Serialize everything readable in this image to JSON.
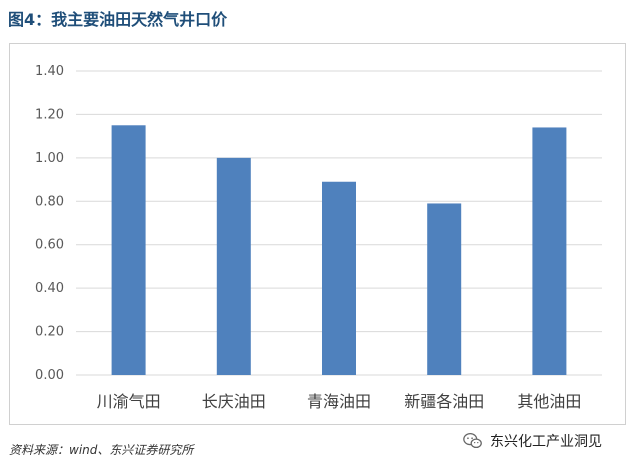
{
  "title": "图4：我主要油田天然气井口价",
  "source": "资料来源：wind、东兴证券研究所",
  "watermark": "东兴化工产业洞见",
  "colors": {
    "bar": "#4f81bd",
    "grid": "#d9d9d9",
    "title": "#1f4e79"
  },
  "chart_data": {
    "type": "bar",
    "categories": [
      "川渝气田",
      "长庆油田",
      "青海油田",
      "新疆各油田",
      "其他油田"
    ],
    "values": [
      1.15,
      1.0,
      0.89,
      0.79,
      1.14
    ],
    "ylim": [
      0,
      1.4
    ],
    "yticks": [
      "0.00",
      "0.20",
      "0.40",
      "0.60",
      "0.80",
      "1.00",
      "1.20",
      "1.40"
    ],
    "grid": true,
    "legend": "none"
  }
}
